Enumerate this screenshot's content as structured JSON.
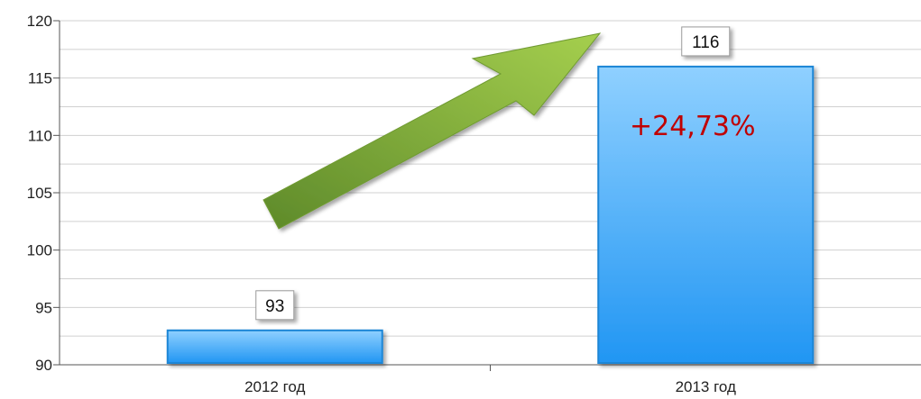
{
  "chart_data": {
    "type": "bar",
    "categories": [
      "2012 год",
      "2013 год"
    ],
    "values": [
      93,
      116
    ],
    "data_labels": [
      "93",
      "116"
    ],
    "ylim": [
      90,
      120
    ],
    "y_ticks": [
      90,
      95,
      100,
      105,
      110,
      115,
      120
    ],
    "y_tick_labels": [
      "90",
      "95",
      "100",
      "105",
      "110",
      "115",
      "120"
    ],
    "grid": true,
    "grid_minor_step": 2.5,
    "title": "",
    "xlabel": "",
    "ylabel": "",
    "annotations": [
      {
        "text": "+24,73%",
        "kind": "text",
        "color": "#c00000"
      },
      {
        "kind": "arrow",
        "color": "#8dbb3c",
        "direction": "up-right"
      }
    ]
  },
  "colors": {
    "bar_top": "#8fd0ff",
    "bar_bottom": "#2196f3",
    "bar_edge": "#1f86d6",
    "grid": "#d0d0d0",
    "axis": "#555555",
    "arrow_light": "#a5cf4e",
    "arrow_dark": "#5e8a2a",
    "change_text": "#c00000"
  }
}
